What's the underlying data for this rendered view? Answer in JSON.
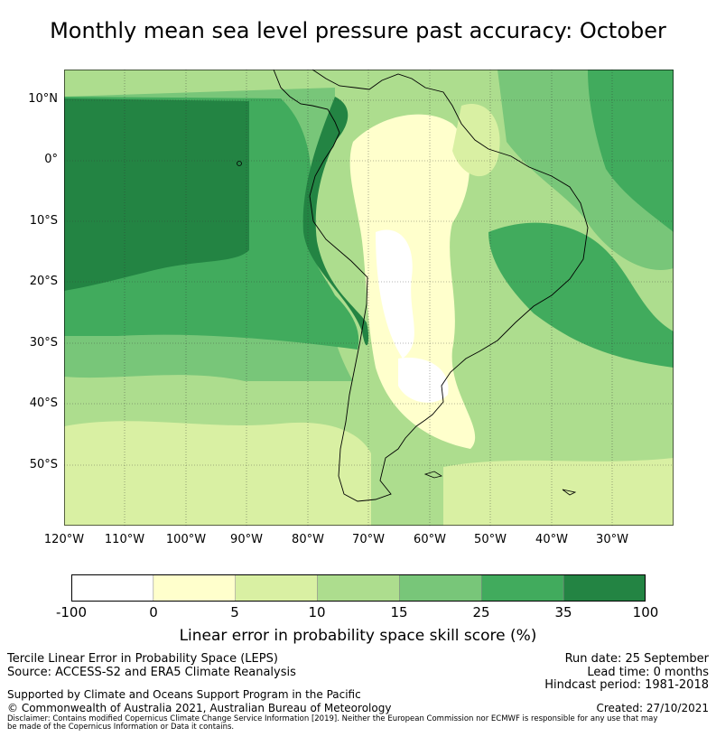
{
  "title": "Monthly mean sea level pressure past accuracy: October",
  "map": {
    "lat_labels": [
      "10°N",
      "0°",
      "10°S",
      "20°S",
      "30°S",
      "40°S",
      "50°S"
    ],
    "lon_labels": [
      "120°W",
      "110°W",
      "100°W",
      "90°W",
      "80°W",
      "70°W",
      "60°W",
      "50°W",
      "40°W",
      "30°W"
    ]
  },
  "colorbar": {
    "colors": [
      "#ffffff",
      "#ffffcc",
      "#d9f0a3",
      "#addd8e",
      "#78c679",
      "#41ab5d",
      "#238443"
    ],
    "tick_labels": [
      "-100",
      "0",
      "5",
      "10",
      "15",
      "25",
      "35",
      "100"
    ],
    "label": "Linear error in probability space skill score (%)"
  },
  "footer": {
    "line1": "Tercile Linear Error in Probability Space (LEPS)",
    "line2": "Source: ACCESS-S2 and ERA5 Climate Reanalysis",
    "support": "Supported by Climate and Oceans Support Program in the Pacific",
    "copyright": "© Commonwealth of Australia 2021, Australian Bureau of Meteorology",
    "disclaimer_1": "Disclaimer: Contains modified Copernicus Climate Change Service Information [2019]. Neither the European Commission nor ECMWF is responsible for any use that may",
    "disclaimer_2": "be made of the Copernicus Information or Data it contains.",
    "run_date": "Run date: 25 September",
    "lead_time": "Lead time: 0 months",
    "hindcast": "Hindcast period: 1981-2018",
    "created": "Created: 27/10/2021"
  }
}
